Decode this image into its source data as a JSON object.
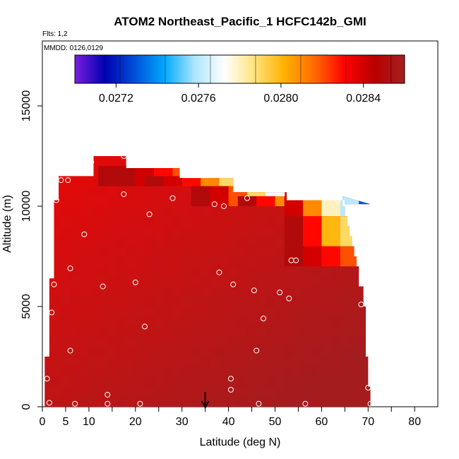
{
  "chart_data": {
    "type": "heatmap",
    "title": "ATOM2 Northeast_Pacific_1 HCFC142b_GMI",
    "flights_label": "Flts: 1,2",
    "mmdd_label": "MMDD: 0126,0129",
    "xlabel": "Latitude (deg N)",
    "ylabel": "Altitude (m)",
    "xlim": [
      0,
      85
    ],
    "ylim": [
      0,
      17000
    ],
    "x_ticks": [
      0,
      5,
      10,
      20,
      30,
      40,
      50,
      60,
      70,
      80
    ],
    "y_ticks": [
      0,
      5000,
      10000,
      15000
    ],
    "colorbar": {
      "min": 0.027,
      "max": 0.0286,
      "ticks": [
        0.0272,
        0.0276,
        0.028,
        0.0284
      ],
      "tick_labels": [
        "0.0272",
        "0.0276",
        "0.0280",
        "0.0284"
      ]
    },
    "arrow_latitude": 35,
    "field_top_edge": [
      {
        "lat_from": 0.5,
        "lat_to": 1.5,
        "top": 2500
      },
      {
        "lat_from": 1.5,
        "lat_to": 2.5,
        "top": 6400
      },
      {
        "lat_from": 2.5,
        "lat_to": 3.5,
        "top": 10300
      },
      {
        "lat_from": 3.5,
        "lat_to": 11,
        "top": 11500
      },
      {
        "lat_from": 11,
        "lat_to": 18,
        "top": 12500
      },
      {
        "lat_from": 18,
        "lat_to": 29.5,
        "top": 11900
      },
      {
        "lat_from": 29.5,
        "lat_to": 41,
        "top": 11400
      },
      {
        "lat_from": 41,
        "lat_to": 52.5,
        "top": 10700
      },
      {
        "lat_from": 52.5,
        "lat_to": 65,
        "top": 10300
      },
      {
        "lat_from": 65,
        "lat_to": 70.5,
        "top": 10100
      }
    ],
    "field_right_edge": [
      {
        "alt_from": 0,
        "alt_to": 1000,
        "lat": 70.5
      },
      {
        "alt_from": 1000,
        "alt_to": 2500,
        "lat": 70
      },
      {
        "alt_from": 2500,
        "alt_to": 5000,
        "lat": 69.5
      },
      {
        "alt_from": 5000,
        "alt_to": 6000,
        "lat": 69
      },
      {
        "alt_from": 6000,
        "alt_to": 7000,
        "lat": 68
      },
      {
        "alt_from": 7000,
        "alt_to": 7500,
        "lat": 67.5
      },
      {
        "alt_from": 7500,
        "alt_to": 8000,
        "lat": 67
      },
      {
        "alt_from": 8000,
        "alt_to": 8500,
        "lat": 66.5
      },
      {
        "alt_from": 8500,
        "alt_to": 9000,
        "lat": 66
      },
      {
        "alt_from": 9000,
        "alt_to": 9500,
        "lat": 65.5
      },
      {
        "alt_from": 9500,
        "alt_to": 10000,
        "lat": 65
      },
      {
        "alt_from": 10000,
        "alt_to": 10500,
        "lat": 64.5
      }
    ],
    "cross_section": [
      {
        "lat": 20,
        "alt_from": 11000,
        "alt_to": 12000,
        "values": [
          0.0285,
          0.0285,
          0.0284,
          0.0283,
          0.0282
        ]
      },
      {
        "lat": 30,
        "alt_from": 11000,
        "alt_to": 11500,
        "values": [
          0.0285,
          0.0284,
          0.0283,
          0.0281,
          0.0279
        ]
      },
      {
        "lat": 40,
        "alt_from": 10000,
        "alt_to": 11000,
        "values": [
          0.0285,
          0.0284,
          0.0282,
          0.0279,
          0.0277
        ]
      },
      {
        "lat": 50,
        "alt_from": 10000,
        "alt_to": 10500,
        "values": [
          0.0285,
          0.0283,
          0.0281,
          0.0278,
          0.0275
        ]
      },
      {
        "lat": 60,
        "alt_from": 9500,
        "alt_to": 10500,
        "values": [
          0.0284,
          0.0281,
          0.0278,
          0.0276,
          0.0273
        ]
      },
      {
        "lat": 60,
        "alt_from": 8000,
        "alt_to": 9500,
        "values": [
          0.0285,
          0.0283,
          0.028,
          0.0279,
          0.0278
        ]
      },
      {
        "lat": 60,
        "alt_from": 7000,
        "alt_to": 8000,
        "values": [
          0.0285,
          0.0284,
          0.0283,
          0.0282,
          0.0281
        ]
      },
      {
        "lat": 0,
        "alt_from": 0,
        "alt_to": 10000,
        "values": [
          0.0285,
          0.0285,
          0.0285,
          0.0285,
          0.0285
        ]
      }
    ],
    "sample_points": [
      [
        1.5,
        200
      ],
      [
        1,
        1400
      ],
      [
        2,
        4700
      ],
      [
        2.5,
        6100
      ],
      [
        3,
        10300
      ],
      [
        4,
        11300
      ],
      [
        5.5,
        11300
      ],
      [
        6,
        6900
      ],
      [
        6,
        2800
      ],
      [
        7,
        150
      ],
      [
        9,
        8600
      ],
      [
        10.5,
        12200
      ],
      [
        13,
        6000
      ],
      [
        14,
        600
      ],
      [
        14,
        150
      ],
      [
        17.5,
        10600
      ],
      [
        17.5,
        12500
      ],
      [
        20,
        6200
      ],
      [
        21,
        150
      ],
      [
        22,
        4000
      ],
      [
        23,
        9600
      ],
      [
        28,
        10400
      ],
      [
        37,
        10100
      ],
      [
        38,
        6700
      ],
      [
        39,
        10000
      ],
      [
        40.5,
        1400
      ],
      [
        40.5,
        850
      ],
      [
        41,
        6100
      ],
      [
        44,
        10400
      ],
      [
        45.5,
        5800
      ],
      [
        46,
        2800
      ],
      [
        46.5,
        150
      ],
      [
        47.5,
        4400
      ],
      [
        51,
        5700
      ],
      [
        53,
        5400
      ],
      [
        53.5,
        7300
      ],
      [
        54.5,
        7300
      ],
      [
        56.5,
        150
      ],
      [
        63.5,
        10300
      ],
      [
        68.5,
        5100
      ],
      [
        70,
        950
      ],
      [
        70.5,
        150
      ]
    ]
  },
  "colors": {
    "colorbar_stops": [
      "#7b1fe0",
      "#0000b0",
      "#0050d8",
      "#00aaff",
      "#aee6ff",
      "#ffffff",
      "#ffe37a",
      "#ffb000",
      "#ff6a00",
      "#ff0000",
      "#b80000",
      "#a52020"
    ],
    "axis": "#000000",
    "sample_point": "#ffffff"
  }
}
